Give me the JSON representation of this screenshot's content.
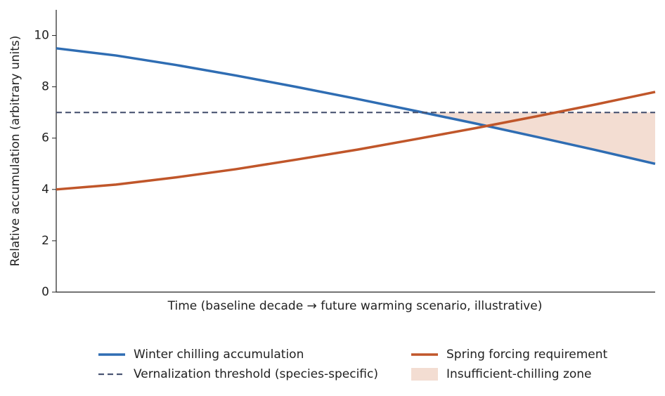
{
  "chart_data": {
    "type": "line",
    "xlabel": "Time (baseline decade → future warming scenario, illustrative)",
    "ylabel": "Relative accumulation (arbitrary units)",
    "x": [
      0,
      1,
      2,
      3,
      4,
      5,
      6,
      7,
      8,
      9,
      10
    ],
    "xlim": [
      0,
      10
    ],
    "ylim": [
      0,
      11
    ],
    "yticks": [
      0,
      2,
      4,
      6,
      8,
      10
    ],
    "series": [
      {
        "name": "Winter chilling accumulation",
        "color": "#2f6db3",
        "dash": false,
        "values": [
          9.5,
          9.22,
          8.85,
          8.44,
          8.0,
          7.54,
          7.06,
          6.57,
          6.06,
          5.54,
          5.0
        ]
      },
      {
        "name": "Vernalization threshold (species-specific)",
        "color": "#4a5573",
        "dash": true,
        "values": [
          7,
          7,
          7,
          7,
          7,
          7,
          7,
          7,
          7,
          7,
          7
        ]
      },
      {
        "name": "Spring forcing requirement",
        "color": "#c0562a",
        "dash": false,
        "values": [
          4.0,
          4.19,
          4.47,
          4.79,
          5.16,
          5.54,
          5.96,
          6.39,
          6.84,
          7.31,
          7.8
        ]
      }
    ],
    "fill": {
      "name": "Insufficient-chilling zone",
      "color": "#f3ddd2",
      "below": 0,
      "limit": 1
    }
  }
}
